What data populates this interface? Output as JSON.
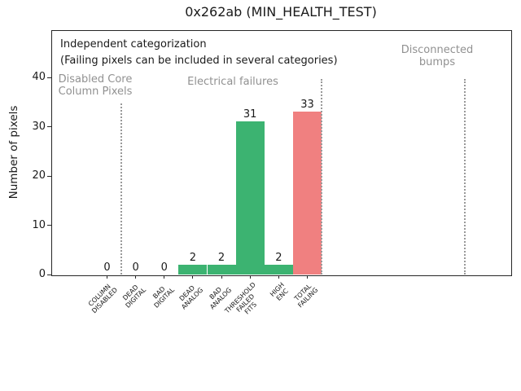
{
  "chart_data": {
    "type": "bar",
    "title": "0x262ab (MIN_HEALTH_TEST)",
    "ylabel": "Number of pixels",
    "xlabel": "",
    "ylim": [
      0,
      49.6
    ],
    "yticks": [
      0,
      10,
      20,
      30,
      40
    ],
    "grid": false,
    "legend": "none",
    "categories": [
      "COLUMN\nDISABLED",
      "DEAD\nDIGITAL",
      "BAD\nDIGITAL",
      "DEAD\nANALOG",
      "BAD\nANALOG",
      "THRESHOLD\nFAILED\nFITS",
      "HIGH\nENC",
      "TOTAL\nFAILING"
    ],
    "values": [
      0,
      0,
      0,
      2,
      2,
      31,
      2,
      33
    ],
    "value_labels": [
      "0",
      "0",
      "0",
      "2",
      "2",
      "31",
      "2",
      "33"
    ],
    "bar_colors": [
      "#3CB371",
      "#3CB371",
      "#3CB371",
      "#3CB371",
      "#3CB371",
      "#3CB371",
      "#3CB371",
      "#F08080"
    ],
    "annotations": {
      "note_line1": "Independent categorization",
      "note_line2": "(Failing pixels can be included in several categories)",
      "region_labels": [
        "Disabled Core\nColumn Pixels",
        "Electrical failures",
        "Disconnected\nbumps"
      ]
    },
    "dividers_x_category_units": [
      0.5,
      7.5,
      12.5
    ],
    "colors": {
      "bar_green": "#3CB371",
      "bar_red": "#F08080",
      "region_text": "#919191",
      "divider": "#999999",
      "axis": "#262626",
      "text": "#1a1a1a"
    }
  }
}
